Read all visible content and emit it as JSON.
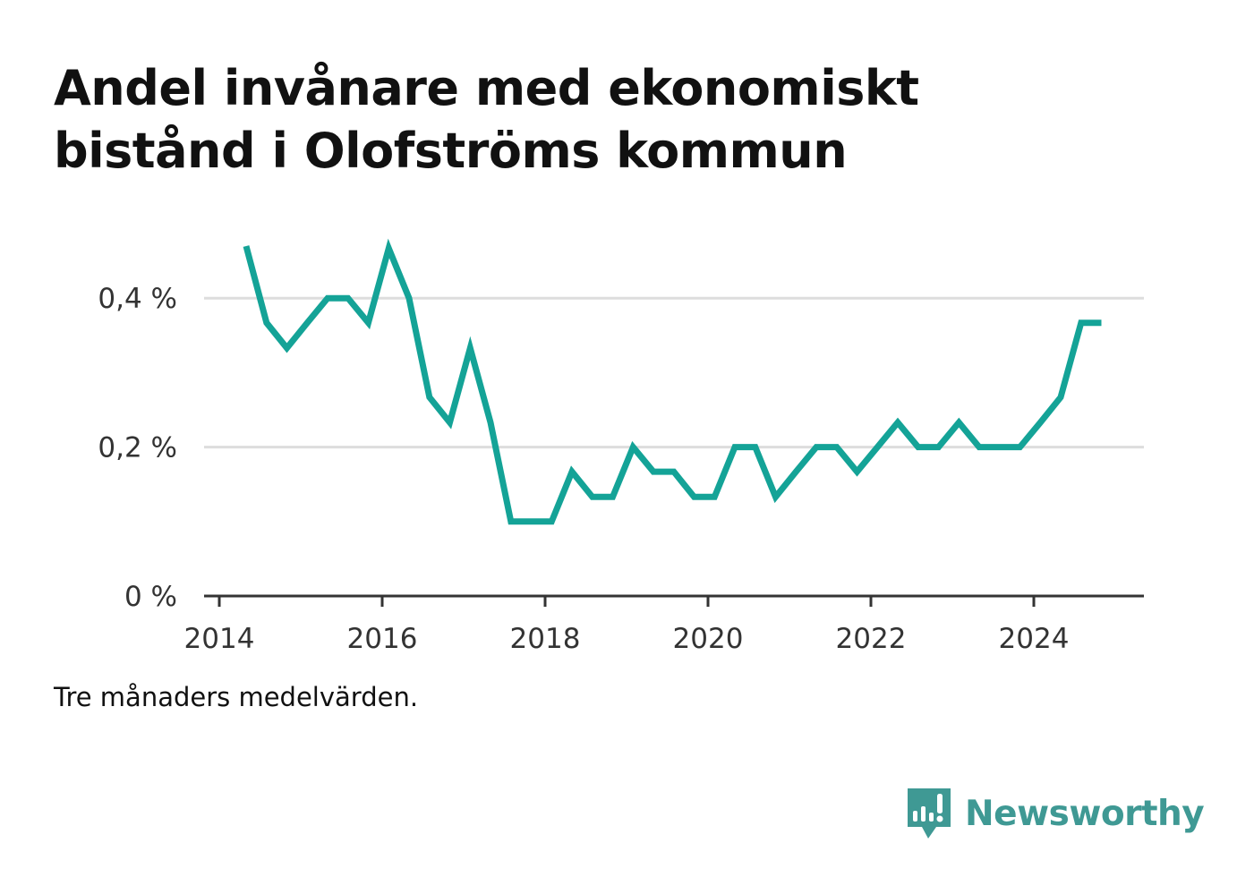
{
  "title": "Andel invånare med ekonomiskt bistånd i Olofströms kommun",
  "note": "Tre månaders medelvärden.",
  "brand": {
    "name": "Newsworthy",
    "icon": "newsworthy-logo-icon",
    "color": "#3f9994"
  },
  "colors": {
    "line": "#14a397",
    "grid": "#dddddd",
    "axis": "#333333",
    "tick_text": "#333333"
  },
  "chart_data": {
    "type": "line",
    "ylim": [
      0,
      0.5
    ],
    "xlim": [
      2013.9,
      2025.35
    ],
    "grid": true,
    "y_ticks": [
      {
        "value": 0,
        "label": "0 %"
      },
      {
        "value": 0.2,
        "label": "0,2 %"
      },
      {
        "value": 0.4,
        "label": "0,4 %"
      }
    ],
    "x_ticks": [
      {
        "value": 2014,
        "label": "2014"
      },
      {
        "value": 2016,
        "label": "2016"
      },
      {
        "value": 2018,
        "label": "2018"
      },
      {
        "value": 2020,
        "label": "2020"
      },
      {
        "value": 2022,
        "label": "2022"
      },
      {
        "value": 2024,
        "label": "2024"
      }
    ],
    "series": [
      {
        "x": [
          2014.33,
          2014.58,
          2014.83,
          2015.08,
          2015.33,
          2015.58,
          2015.83,
          2016.08,
          2016.33,
          2016.58,
          2016.83,
          2017.08,
          2017.33,
          2017.58,
          2017.83,
          2018.08,
          2018.33,
          2018.58,
          2018.83,
          2019.08,
          2019.33,
          2019.58,
          2019.83,
          2020.08,
          2020.33,
          2020.58,
          2020.83,
          2021.08,
          2021.33,
          2021.58,
          2021.83,
          2022.08,
          2022.33,
          2022.58,
          2022.83,
          2023.08,
          2023.33,
          2023.58,
          2023.83,
          2024.08,
          2024.33,
          2024.58,
          2024.83
        ],
        "values": [
          0.47,
          0.367,
          0.333,
          0.367,
          0.4,
          0.4,
          0.367,
          0.467,
          0.4,
          0.267,
          0.233,
          0.333,
          0.233,
          0.1,
          0.1,
          0.1,
          0.167,
          0.133,
          0.133,
          0.2,
          0.167,
          0.167,
          0.133,
          0.133,
          0.2,
          0.2,
          0.133,
          0.167,
          0.2,
          0.2,
          0.167,
          0.2,
          0.233,
          0.2,
          0.2,
          0.233,
          0.2,
          0.2,
          0.2,
          0.233,
          0.267,
          0.367,
          0.367
        ]
      }
    ]
  }
}
